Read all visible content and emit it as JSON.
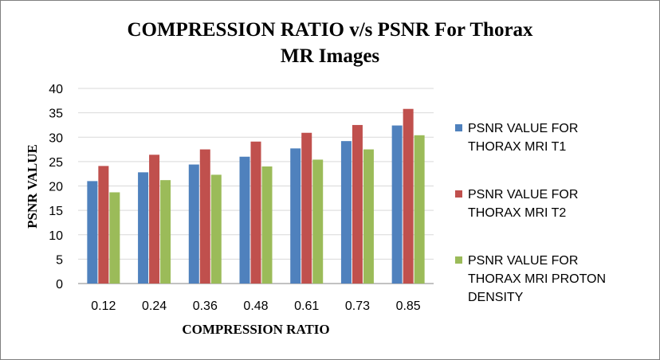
{
  "chart_data": {
    "type": "bar",
    "title_lines": [
      "COMPRESSION RATIO  v/s PSNR For Thorax",
      "MR Images"
    ],
    "xlabel": "COMPRESSION RATIO",
    "ylabel": "PSNR VALUE",
    "categories": [
      "0.12",
      "0.24",
      "0.36",
      "0.48",
      "0.61",
      "0.73",
      "0.85"
    ],
    "ylim": [
      0,
      40
    ],
    "yticks": [
      0,
      5,
      10,
      15,
      20,
      25,
      30,
      35,
      40
    ],
    "grid": "horizontal",
    "legend_position": "right",
    "series": [
      {
        "name_lines": [
          "PSNR VALUE FOR",
          "THORAX MRI T1"
        ],
        "color": "#4f81bd",
        "values": [
          21.0,
          22.8,
          24.4,
          26.0,
          27.7,
          29.2,
          32.4
        ]
      },
      {
        "name_lines": [
          "PSNR VALUE FOR",
          "THORAX MRI T2"
        ],
        "color": "#c0504d",
        "values": [
          24.1,
          26.4,
          27.5,
          29.1,
          30.9,
          32.5,
          35.8
        ]
      },
      {
        "name_lines": [
          "PSNR VALUE FOR",
          "THORAX MRI PROTON",
          "DENSITY"
        ],
        "color": "#9bbb59",
        "values": [
          18.7,
          21.2,
          22.3,
          24.0,
          25.4,
          27.5,
          30.4
        ]
      }
    ]
  }
}
